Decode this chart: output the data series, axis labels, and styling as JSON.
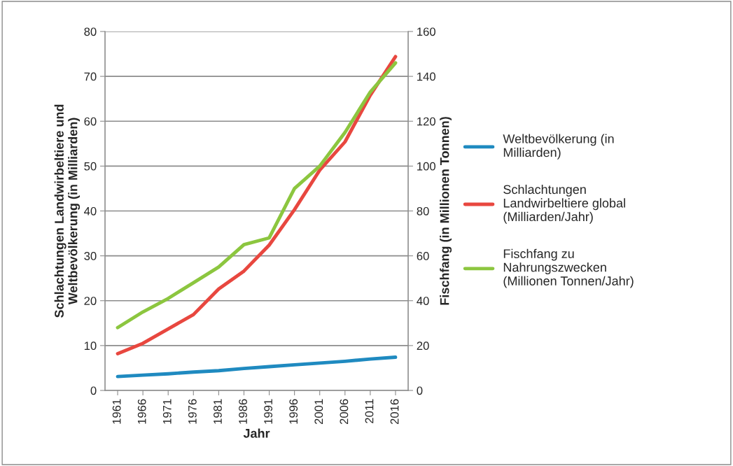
{
  "chart_data": {
    "type": "line",
    "xlabel": "Jahr",
    "ylabel": "Schlachtungen Landwirbeltiere und\nWeltbevölkerung (in Milliarden)",
    "y2label": "Fischfang (in Millionen Tonnen)",
    "categories": [
      "1961",
      "1966",
      "1971",
      "1976",
      "1981",
      "1986",
      "1991",
      "1996",
      "2001",
      "2006",
      "2011",
      "2016"
    ],
    "series": [
      {
        "name": "Weltbevölkerung (in Milliarden)",
        "color": "#1f8ac0",
        "values": [
          3.1,
          3.4,
          3.7,
          4.1,
          4.4,
          4.9,
          5.3,
          5.7,
          6.1,
          6.5,
          7.0,
          7.4
        ]
      },
      {
        "name": "Schlachtungen Landwirbeltiere global (Milliarden/Jahr)",
        "color": "#e8473f",
        "values": [
          8.2,
          10.5,
          13.7,
          16.9,
          22.6,
          26.6,
          32.4,
          40.3,
          49.1,
          55.4,
          65.8,
          74.4
        ]
      },
      {
        "name": "Fischfang zu Nahrungszwecken (Millionen Tonnen/Jahr)",
        "color": "#8cc63f",
        "axis": "y2",
        "values": [
          28,
          35,
          41,
          48,
          55,
          65,
          68,
          90,
          100,
          115,
          133,
          146
        ]
      }
    ],
    "ylim": [
      0,
      80
    ],
    "yticks": [
      0,
      10,
      20,
      30,
      40,
      50,
      60,
      70,
      80
    ],
    "y2lim": [
      0,
      160
    ],
    "y2ticks": [
      0,
      20,
      40,
      60,
      80,
      100,
      120,
      140,
      160
    ],
    "grid": "y",
    "legend": "right"
  }
}
